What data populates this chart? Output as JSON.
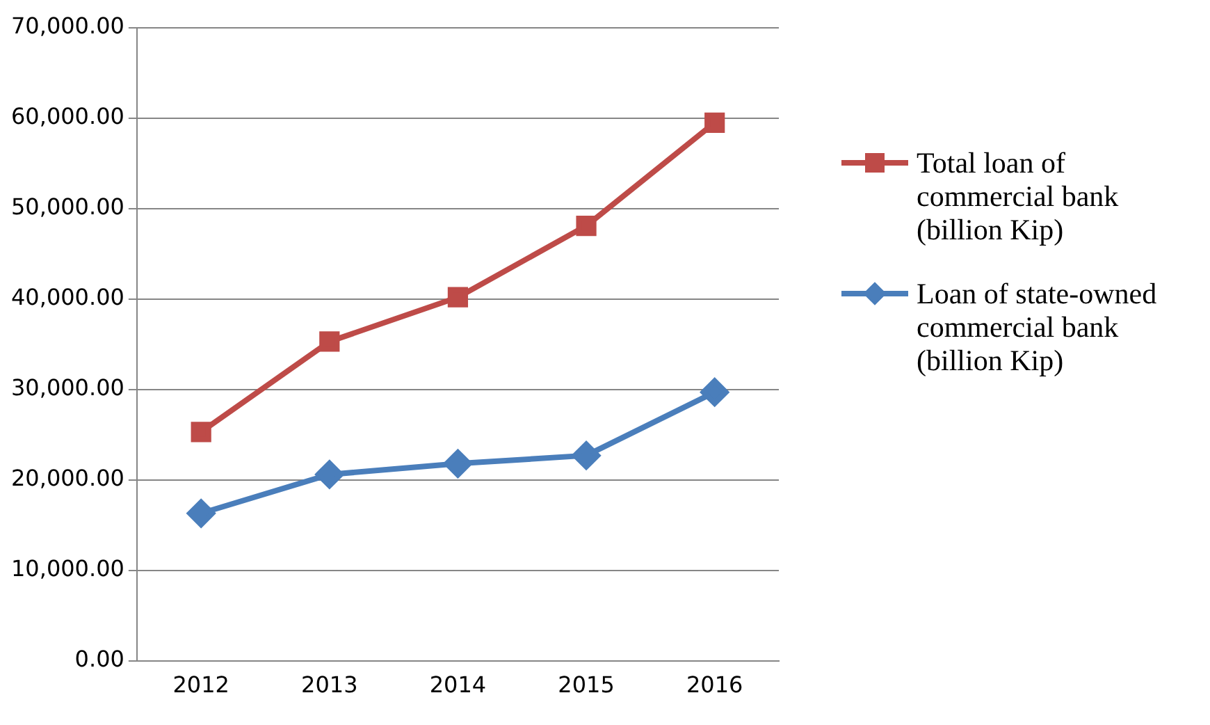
{
  "chart_data": {
    "type": "line",
    "categories": [
      "2012",
      "2013",
      "2014",
      "2015",
      "2016"
    ],
    "series": [
      {
        "name": "Total loan of commercial bank (billion Kip)",
        "color": "#be4b48",
        "marker": "square",
        "values": [
          25300,
          35300,
          40200,
          48100,
          59500
        ]
      },
      {
        "name": "Loan of state-owned commercial bank (billion Kip)",
        "color": "#4a7ebb",
        "marker": "diamond",
        "values": [
          16300,
          20600,
          21800,
          22700,
          29700
        ]
      }
    ],
    "ylim": [
      0,
      70000
    ],
    "yticks": [
      {
        "value": 0,
        "label": "0.00"
      },
      {
        "value": 10000,
        "label": "10,000.00"
      },
      {
        "value": 20000,
        "label": "20,000.00"
      },
      {
        "value": 30000,
        "label": "30,000.00"
      },
      {
        "value": 40000,
        "label": "40,000.00"
      },
      {
        "value": 50000,
        "label": "50,000.00"
      },
      {
        "value": 60000,
        "label": "60,000.00"
      },
      {
        "value": 70000,
        "label": "70,000.00"
      }
    ],
    "grid": "y",
    "legend": "right"
  }
}
